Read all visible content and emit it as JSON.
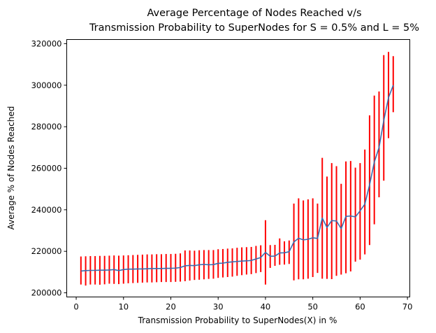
{
  "chart_data": {
    "type": "line",
    "title": "Average Percentage of Nodes Reached v/s",
    "subtitle": "Transmission Probability to SuperNodes for S = 0.5% and L = 5%",
    "xlabel": "Transmission Probability to SuperNodes(X) in %",
    "ylabel": "Average % of Nodes Reached",
    "xlim": [
      -2,
      70.5
    ],
    "ylim": [
      198000,
      322000
    ],
    "x_ticks": [
      0,
      10,
      20,
      30,
      40,
      50,
      60,
      70
    ],
    "x_tick_labels": [
      "0",
      "10",
      "20",
      "30",
      "40",
      "50",
      "60",
      "70"
    ],
    "y_ticks": [
      200000,
      220000,
      240000,
      260000,
      280000,
      300000,
      320000
    ],
    "y_tick_labels": [
      "200000",
      "220000",
      "240000",
      "260000",
      "280000",
      "300000",
      "320000"
    ],
    "grid": false,
    "colors": {
      "line": "#3a6db0",
      "errorbar": "#ff0000"
    },
    "series": [
      {
        "type": "errorbar_line",
        "x": [
          1,
          2,
          3,
          4,
          5,
          6,
          7,
          8,
          9,
          10,
          11,
          12,
          13,
          14,
          15,
          16,
          17,
          18,
          19,
          20,
          21,
          22,
          23,
          24,
          25,
          26,
          27,
          28,
          29,
          30,
          31,
          32,
          33,
          34,
          35,
          36,
          37,
          38,
          39,
          40,
          41,
          42,
          43,
          44,
          45,
          46,
          47,
          48,
          49,
          50,
          51,
          52,
          53,
          54,
          55,
          56,
          57,
          58,
          59,
          60,
          61,
          62,
          63,
          64,
          65,
          66,
          67
        ],
        "y": [
          210500,
          210700,
          210800,
          210800,
          210900,
          210900,
          211000,
          211200,
          210700,
          211200,
          211400,
          211400,
          211500,
          211500,
          211600,
          211700,
          211700,
          211700,
          211800,
          211800,
          211900,
          212200,
          213000,
          213200,
          213100,
          213500,
          213700,
          213500,
          213600,
          214200,
          214300,
          214700,
          214900,
          215100,
          215300,
          215400,
          215600,
          216300,
          217000,
          219500,
          217600,
          217700,
          219200,
          219300,
          219800,
          224500,
          226300,
          225500,
          225800,
          226500,
          226200,
          236000,
          231500,
          234800,
          234600,
          230900,
          236800,
          237000,
          236600,
          239500,
          242700,
          252000,
          263000,
          270000,
          283000,
          294000,
          300000
        ],
        "y_low": [
          204000,
          203500,
          204000,
          204000,
          203900,
          204100,
          204400,
          204300,
          204200,
          204400,
          204600,
          204700,
          204800,
          204900,
          205000,
          205000,
          205100,
          205200,
          205200,
          205200,
          205300,
          205400,
          205600,
          205900,
          206200,
          206300,
          206500,
          206700,
          206800,
          207200,
          207400,
          207600,
          207800,
          208200,
          208500,
          208800,
          209000,
          209500,
          210000,
          204000,
          212000,
          213000,
          213500,
          213600,
          213900,
          206000,
          206500,
          206500,
          206800,
          207600,
          209600,
          206800,
          206700,
          206600,
          208200,
          208800,
          209400,
          210300,
          215000,
          216000,
          218500,
          223000,
          233000,
          246000,
          254000,
          274500,
          287000
        ],
        "y_high": [
          217500,
          217600,
          217700,
          217700,
          217800,
          217800,
          217900,
          218000,
          217900,
          218000,
          218100,
          218200,
          218300,
          218400,
          218500,
          218500,
          218600,
          218600,
          218700,
          218700,
          218800,
          219000,
          220400,
          220400,
          220300,
          220500,
          220600,
          220600,
          220600,
          221000,
          221100,
          221300,
          221400,
          221700,
          221900,
          222000,
          222100,
          222600,
          222900,
          235000,
          223000,
          223100,
          226200,
          224800,
          225200,
          243000,
          245500,
          244500,
          245000,
          245500,
          243000,
          265000,
          256000,
          262500,
          261000,
          252500,
          263300,
          263500,
          260300,
          262500,
          269000,
          285500,
          295000,
          297000,
          314500,
          316000,
          314000
        ]
      }
    ]
  }
}
